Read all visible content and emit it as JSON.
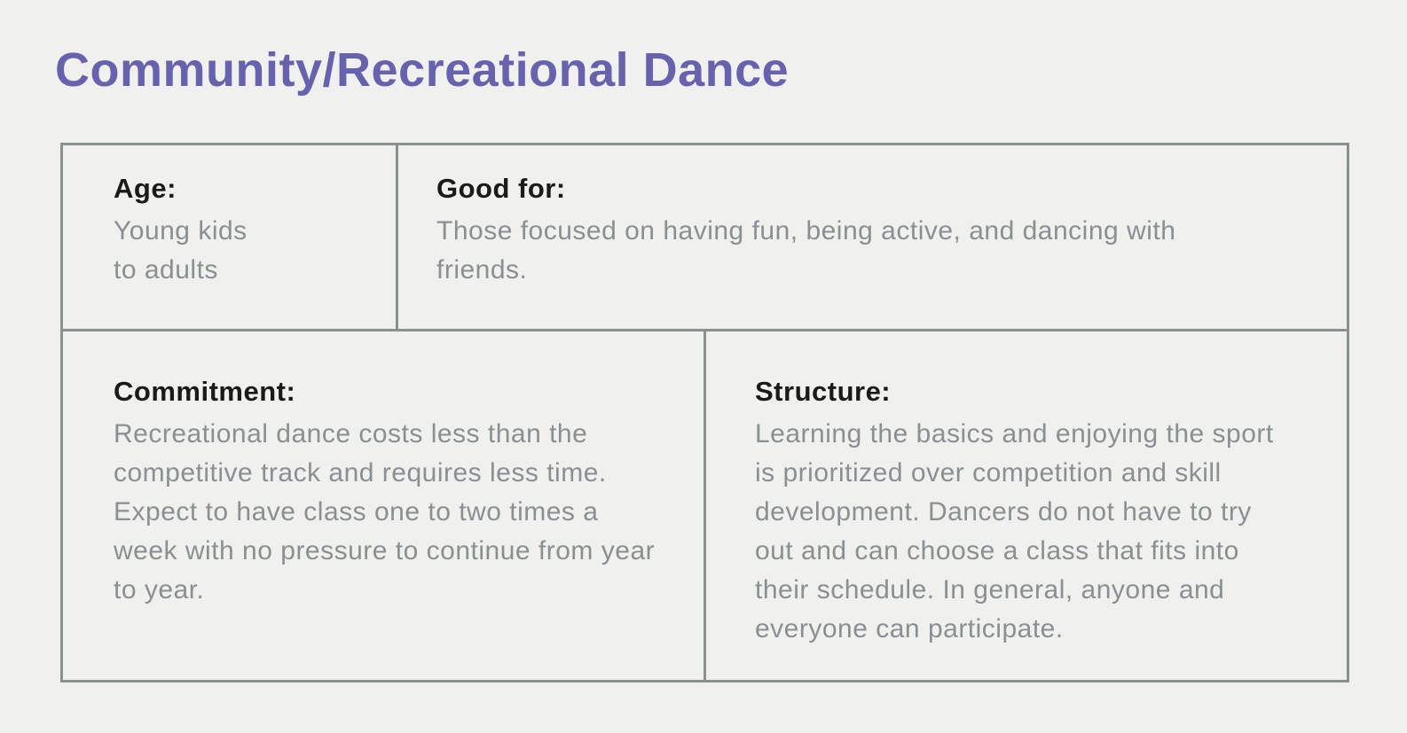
{
  "title": "Community/Recreational Dance",
  "colors": {
    "background": "#f0f0ee",
    "title": "#6862ae",
    "label": "#1a1a18",
    "body": "#898f92",
    "border": "#8b9191"
  },
  "table": {
    "cells": [
      {
        "id": "age",
        "label": "Age:",
        "text": "Young kids\nto adults"
      },
      {
        "id": "good-for",
        "label": "Good for:",
        "text": "Those focused on having fun, being active, and dancing with\nfriends."
      },
      {
        "id": "commitment",
        "label": "Commitment:",
        "text": "Recreational dance costs less than the\ncompetitive track and requires less time.\nExpect to have class one to two times a\nweek with no pressure to continue from year\nto year."
      },
      {
        "id": "structure",
        "label": "Structure:",
        "text": "Learning the basics and enjoying the sport\nis prioritized over competition and skill\ndevelopment. Dancers do not have to try\nout and can choose a class that fits into\ntheir schedule. In general, anyone and\neveryone can participate."
      }
    ]
  }
}
